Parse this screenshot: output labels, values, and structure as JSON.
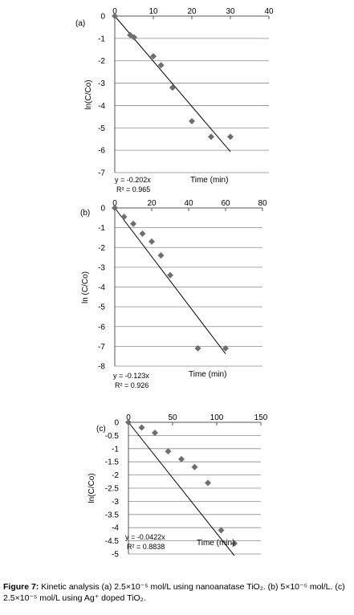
{
  "chart_data": [
    {
      "type": "scatter",
      "panel_label": "(a)",
      "ylabel": "ln(C/Co)",
      "xlabel": "Time (min)",
      "xlim": [
        0,
        40
      ],
      "ylim": [
        -7,
        0
      ],
      "xticks": [
        "0",
        "10",
        "20",
        "30",
        "40"
      ],
      "yticks": [
        "0",
        "-1",
        "-2",
        "-3",
        "-4",
        "-5",
        "-6",
        "-7"
      ],
      "series": [
        {
          "x": [
            0,
            4,
            5,
            10,
            12,
            15,
            20,
            25,
            30
          ],
          "y": [
            0,
            -0.85,
            -0.95,
            -1.8,
            -2.2,
            -3.2,
            -4.7,
            -5.4,
            -5.4
          ]
        }
      ],
      "trendline": {
        "slope": -0.202,
        "x_end": 30
      },
      "equation": "y = -0.202x",
      "r2": "R² = 0.965"
    },
    {
      "type": "scatter",
      "panel_label": "(b)",
      "ylabel": "ln (C/Co)",
      "xlabel": "Time (min)",
      "xlim": [
        0,
        80
      ],
      "ylim": [
        -8,
        0
      ],
      "xticks": [
        "0",
        "20",
        "40",
        "60",
        "80"
      ],
      "yticks": [
        "0",
        "-1",
        "-2",
        "-3",
        "-4",
        "-5",
        "-6",
        "-7",
        "-8"
      ],
      "series": [
        {
          "x": [
            0,
            5,
            10,
            15,
            20,
            25,
            30,
            45,
            60
          ],
          "y": [
            0,
            -0.45,
            -0.8,
            -1.3,
            -1.7,
            -2.4,
            -3.4,
            -7.1,
            -7.1
          ]
        }
      ],
      "trendline": {
        "slope": -0.123,
        "x_end": 60
      },
      "equation": "y = -0.123x",
      "r2": "R² = 0.926"
    },
    {
      "type": "scatter",
      "panel_label": "(c)",
      "ylabel": "ln(C/Co)",
      "xlabel": "Time (min)",
      "xlim": [
        0,
        150
      ],
      "ylim": [
        -5,
        0
      ],
      "xticks": [
        "0",
        "50",
        "100",
        "150"
      ],
      "yticks": [
        "0",
        "-0.5",
        "-1",
        "-1.5",
        "-2",
        "-2.5",
        "-3",
        "-3.5",
        "-4",
        "-4.5",
        "-5"
      ],
      "series": [
        {
          "x": [
            0,
            15,
            30,
            45,
            60,
            75,
            90,
            105,
            120
          ],
          "y": [
            0,
            -0.2,
            -0.4,
            -1.1,
            -1.4,
            -1.7,
            -2.3,
            -4.1,
            -4.6
          ]
        }
      ],
      "trendline": {
        "slope": -0.0422,
        "x_end": 120
      },
      "equation": "y = -0.0422x",
      "r2": "R² = 0.8838"
    }
  ],
  "caption": {
    "label": "Figure 7:",
    "text": " Kinetic analysis (a) 2.5×10⁻⁵ mol/L using nanoanatase TiO₂. (b) 5×10⁻⁵ mol/L. (c) 2.5×10⁻⁵ mol/L using Ag⁺ doped TiO₂."
  }
}
